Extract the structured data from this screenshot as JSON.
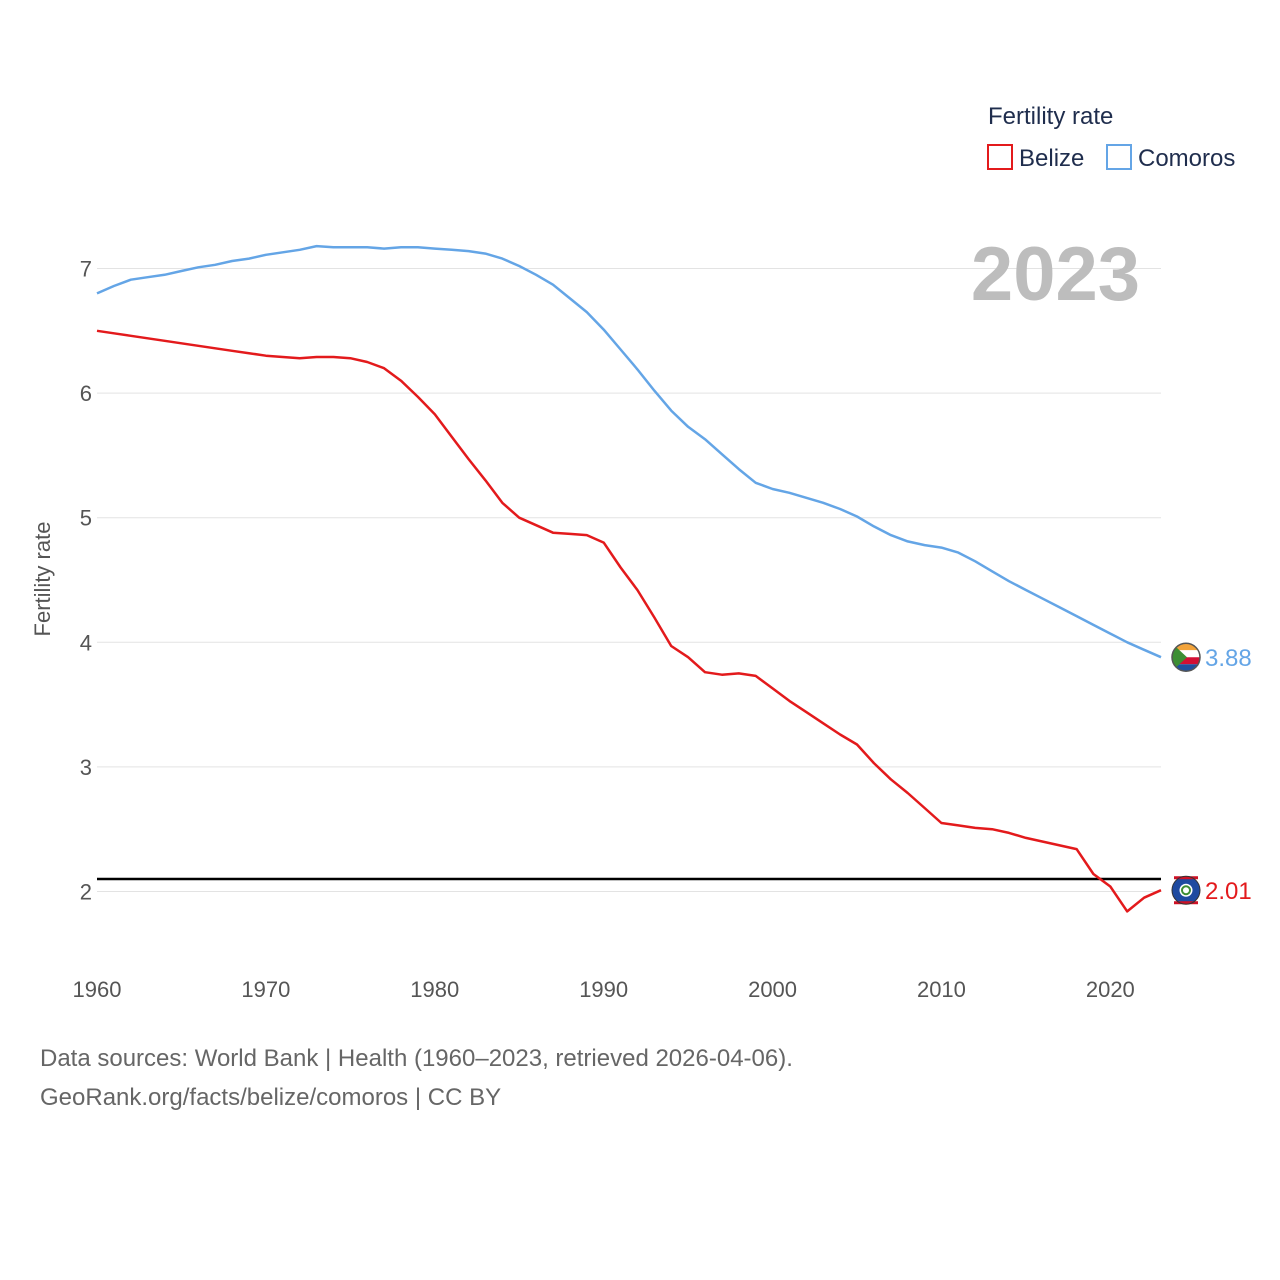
{
  "chart_data": {
    "type": "line",
    "title": "",
    "ylabel": "Fertility rate",
    "xlabel": "",
    "xlim": [
      1960,
      2023
    ],
    "ylim": [
      1.45,
      7.55
    ],
    "yticks": [
      2,
      3,
      4,
      5,
      6,
      7
    ],
    "xticks": [
      1960,
      1970,
      1980,
      1990,
      2000,
      2010,
      2020
    ],
    "grid": true,
    "legend": {
      "title": "Fertility rate",
      "position": "top-right"
    },
    "year_label": "2023",
    "reference_line": {
      "y": 2.1
    },
    "x": [
      1960,
      1961,
      1962,
      1963,
      1964,
      1965,
      1966,
      1967,
      1968,
      1969,
      1970,
      1971,
      1972,
      1973,
      1974,
      1975,
      1976,
      1977,
      1978,
      1979,
      1980,
      1981,
      1982,
      1983,
      1984,
      1985,
      1986,
      1987,
      1988,
      1989,
      1990,
      1991,
      1992,
      1993,
      1994,
      1995,
      1996,
      1997,
      1998,
      1999,
      2000,
      2001,
      2002,
      2003,
      2004,
      2005,
      2006,
      2007,
      2008,
      2009,
      2010,
      2011,
      2012,
      2013,
      2014,
      2015,
      2016,
      2017,
      2018,
      2019,
      2020,
      2021,
      2022,
      2023
    ],
    "series": [
      {
        "name": "Belize",
        "color": "#e31a1c",
        "end_label": "2.01",
        "values": [
          6.5,
          6.48,
          6.46,
          6.44,
          6.42,
          6.4,
          6.38,
          6.36,
          6.34,
          6.32,
          6.3,
          6.29,
          6.28,
          6.29,
          6.29,
          6.28,
          6.25,
          6.2,
          6.1,
          5.97,
          5.83,
          5.65,
          5.47,
          5.3,
          5.12,
          5.0,
          4.94,
          4.88,
          4.87,
          4.86,
          4.8,
          4.6,
          4.42,
          4.2,
          3.97,
          3.88,
          3.76,
          3.74,
          3.75,
          3.73,
          3.63,
          3.53,
          3.44,
          3.35,
          3.26,
          3.18,
          3.03,
          2.9,
          2.79,
          2.67,
          2.55,
          2.53,
          2.51,
          2.5,
          2.47,
          2.43,
          2.4,
          2.37,
          2.34,
          2.14,
          2.04,
          1.84,
          1.95,
          2.01
        ]
      },
      {
        "name": "Comoros",
        "color": "#64a5e6",
        "end_label": "3.88",
        "values": [
          6.8,
          6.86,
          6.91,
          6.93,
          6.95,
          6.98,
          7.01,
          7.03,
          7.06,
          7.08,
          7.11,
          7.13,
          7.15,
          7.18,
          7.17,
          7.17,
          7.17,
          7.16,
          7.17,
          7.17,
          7.16,
          7.15,
          7.14,
          7.12,
          7.08,
          7.02,
          6.95,
          6.87,
          6.76,
          6.65,
          6.51,
          6.35,
          6.19,
          6.02,
          5.86,
          5.73,
          5.63,
          5.51,
          5.39,
          5.28,
          5.23,
          5.2,
          5.16,
          5.12,
          5.07,
          5.01,
          4.93,
          4.86,
          4.81,
          4.78,
          4.76,
          4.72,
          4.65,
          4.57,
          4.49,
          4.42,
          4.35,
          4.28,
          4.21,
          4.14,
          4.07,
          4.0,
          3.94,
          3.88
        ]
      }
    ]
  },
  "footer": {
    "line1": "Data sources: World Bank | Health (1960–2023, retrieved 2026-04-06).",
    "line2": "GeoRank.org/facts/belize/comoros | CC BY"
  }
}
